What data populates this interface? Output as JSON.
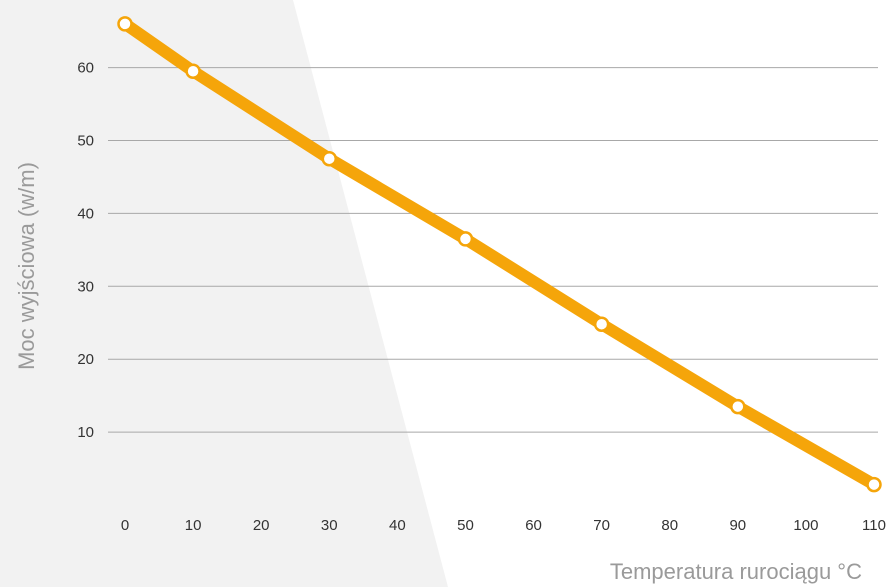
{
  "chart_data": {
    "type": "line",
    "xlabel": "Temperatura rurociągu °C",
    "ylabel": "Moc wyjściowa (w/m)",
    "x_ticks": [
      0,
      10,
      20,
      30,
      40,
      50,
      60,
      70,
      80,
      90,
      100,
      110
    ],
    "y_ticks": [
      10,
      20,
      30,
      40,
      50,
      60
    ],
    "xlim": [
      0,
      110
    ],
    "ylim": [
      0,
      66
    ],
    "grid": "horizontal",
    "series": [
      {
        "color": "#F5A50A",
        "points": [
          {
            "x": 0,
            "y": 66
          },
          {
            "x": 10,
            "y": 59.5
          },
          {
            "x": 30,
            "y": 47.5
          },
          {
            "x": 50,
            "y": 36.5
          },
          {
            "x": 70,
            "y": 24.8
          },
          {
            "x": 90,
            "y": 13.5
          },
          {
            "x": 110,
            "y": 2.8
          }
        ]
      }
    ],
    "colors": {
      "line": "#F5A50A",
      "marker_fill": "#ffffff",
      "grid": "#a8a8a8",
      "background_shape": "#f2f2f2",
      "axis_title": "#9a9a9a",
      "tick_label": "#333333"
    }
  }
}
